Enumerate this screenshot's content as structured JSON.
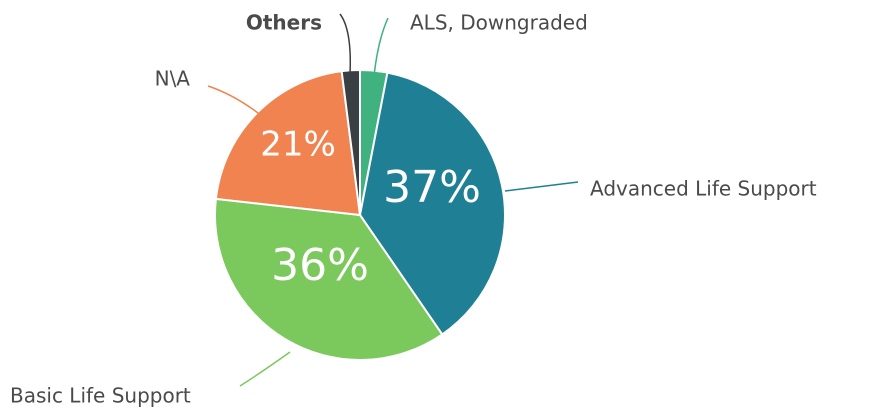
{
  "chart_data": {
    "type": "pie",
    "categories": [
      "ALS, Downgraded",
      "Advanced Life Support",
      "Basic Life Support",
      "N\\A",
      "Others"
    ],
    "values": [
      3,
      37,
      36,
      21,
      2
    ],
    "value_labels": [
      null,
      "37%",
      "36%",
      "21%",
      null
    ],
    "colors": [
      "#3fb27f",
      "#1f7f94",
      "#7bc85c",
      "#f0834f",
      "#3a3f44"
    ]
  }
}
